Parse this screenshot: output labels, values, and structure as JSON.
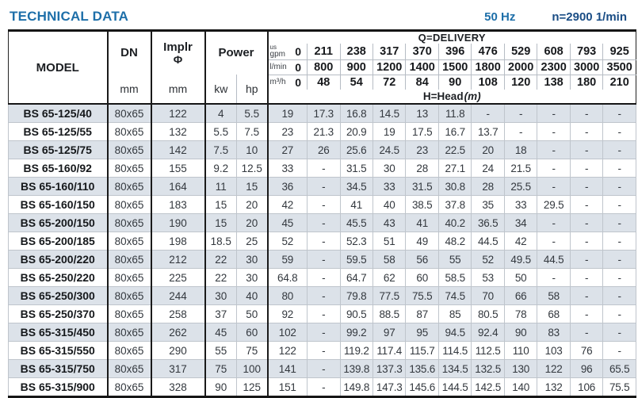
{
  "page": {
    "title": "TECHNICAL DATA",
    "frequency": "50 Hz",
    "speed": "n=2900 1/min"
  },
  "table": {
    "headers": {
      "model": "MODEL",
      "dn": "DN",
      "dn_unit": "mm",
      "impeller_line1": "Implr",
      "impeller_line2": "Φ",
      "impeller_unit": "mm",
      "power": "Power",
      "kw": "kw",
      "hp": "hp",
      "delivery_title": "Q=DELIVERY",
      "head_title": "H=Head",
      "head_unit": "(m)"
    },
    "units": {
      "gpm_top": "us",
      "gpm": "gpm",
      "lmin": "l/min",
      "m3h": "m³/h",
      "zero": "0"
    },
    "delivery_columns": {
      "gpm": [
        "211",
        "238",
        "317",
        "370",
        "396",
        "476",
        "529",
        "608",
        "793",
        "925"
      ],
      "lmin": [
        "800",
        "900",
        "1200",
        "1400",
        "1500",
        "1800",
        "2000",
        "2300",
        "3000",
        "3500"
      ],
      "m3h": [
        "48",
        "54",
        "72",
        "84",
        "90",
        "108",
        "120",
        "138",
        "180",
        "210"
      ]
    },
    "rows": [
      {
        "model": "BS 65-125/40",
        "dn": "80x65",
        "impeller": "122",
        "kw": "4",
        "hp": "5.5",
        "head": [
          "19",
          "17.3",
          "16.8",
          "14.5",
          "13",
          "11.8",
          "-",
          "-",
          "-",
          "-",
          "-"
        ]
      },
      {
        "model": "BS 65-125/55",
        "dn": "80x65",
        "impeller": "132",
        "kw": "5.5",
        "hp": "7.5",
        "head": [
          "23",
          "21.3",
          "20.9",
          "19",
          "17.5",
          "16.7",
          "13.7",
          "-",
          "-",
          "-",
          "-"
        ]
      },
      {
        "model": "BS 65-125/75",
        "dn": "80x65",
        "impeller": "142",
        "kw": "7.5",
        "hp": "10",
        "head": [
          "27",
          "26",
          "25.6",
          "24.5",
          "23",
          "22.5",
          "20",
          "18",
          "-",
          "-",
          "-"
        ]
      },
      {
        "model": "BS 65-160/92",
        "dn": "80x65",
        "impeller": "155",
        "kw": "9.2",
        "hp": "12.5",
        "head": [
          "33",
          "-",
          "31.5",
          "30",
          "28",
          "27.1",
          "24",
          "21.5",
          "-",
          "-",
          "-"
        ]
      },
      {
        "model": "BS 65-160/110",
        "dn": "80x65",
        "impeller": "164",
        "kw": "11",
        "hp": "15",
        "head": [
          "36",
          "-",
          "34.5",
          "33",
          "31.5",
          "30.8",
          "28",
          "25.5",
          "-",
          "-",
          "-"
        ]
      },
      {
        "model": "BS 65-160/150",
        "dn": "80x65",
        "impeller": "183",
        "kw": "15",
        "hp": "20",
        "head": [
          "42",
          "-",
          "41",
          "40",
          "38.5",
          "37.8",
          "35",
          "33",
          "29.5",
          "-",
          "-"
        ]
      },
      {
        "model": "BS 65-200/150",
        "dn": "80x65",
        "impeller": "190",
        "kw": "15",
        "hp": "20",
        "head": [
          "45",
          "-",
          "45.5",
          "43",
          "41",
          "40.2",
          "36.5",
          "34",
          "-",
          "-",
          "-"
        ]
      },
      {
        "model": "BS 65-200/185",
        "dn": "80x65",
        "impeller": "198",
        "kw": "18.5",
        "hp": "25",
        "head": [
          "52",
          "-",
          "52.3",
          "51",
          "49",
          "48.2",
          "44.5",
          "42",
          "-",
          "-",
          "-"
        ]
      },
      {
        "model": "BS 65-200/220",
        "dn": "80x65",
        "impeller": "212",
        "kw": "22",
        "hp": "30",
        "head": [
          "59",
          "-",
          "59.5",
          "58",
          "56",
          "55",
          "52",
          "49.5",
          "44.5",
          "-",
          "-"
        ]
      },
      {
        "model": "BS 65-250/220",
        "dn": "80x65",
        "impeller": "225",
        "kw": "22",
        "hp": "30",
        "head": [
          "64.8",
          "-",
          "64.7",
          "62",
          "60",
          "58.5",
          "53",
          "50",
          "-",
          "-",
          "-"
        ]
      },
      {
        "model": "BS 65-250/300",
        "dn": "80x65",
        "impeller": "244",
        "kw": "30",
        "hp": "40",
        "head": [
          "80",
          "-",
          "79.8",
          "77.5",
          "75.5",
          "74.5",
          "70",
          "66",
          "58",
          "-",
          "-"
        ]
      },
      {
        "model": "BS 65-250/370",
        "dn": "80x65",
        "impeller": "258",
        "kw": "37",
        "hp": "50",
        "head": [
          "92",
          "-",
          "90.5",
          "88.5",
          "87",
          "85",
          "80.5",
          "78",
          "68",
          "-",
          "-"
        ]
      },
      {
        "model": "BS 65-315/450",
        "dn": "80x65",
        "impeller": "262",
        "kw": "45",
        "hp": "60",
        "head": [
          "102",
          "-",
          "99.2",
          "97",
          "95",
          "94.5",
          "92.4",
          "90",
          "83",
          "-",
          "-"
        ]
      },
      {
        "model": "BS 65-315/550",
        "dn": "80x65",
        "impeller": "290",
        "kw": "55",
        "hp": "75",
        "head": [
          "122",
          "-",
          "119.2",
          "117.4",
          "115.7",
          "114.5",
          "112.5",
          "110",
          "103",
          "76",
          "-"
        ]
      },
      {
        "model": "BS 65-315/750",
        "dn": "80x65",
        "impeller": "317",
        "kw": "75",
        "hp": "100",
        "head": [
          "141",
          "-",
          "139.8",
          "137.3",
          "135.6",
          "134.5",
          "132.5",
          "130",
          "122",
          "96",
          "65.5"
        ]
      },
      {
        "model": "BS 65-315/900",
        "dn": "80x65",
        "impeller": "328",
        "kw": "90",
        "hp": "125",
        "head": [
          "151",
          "-",
          "149.8",
          "147.3",
          "145.6",
          "144.5",
          "142.5",
          "140",
          "132",
          "106",
          "75.5"
        ]
      }
    ]
  }
}
